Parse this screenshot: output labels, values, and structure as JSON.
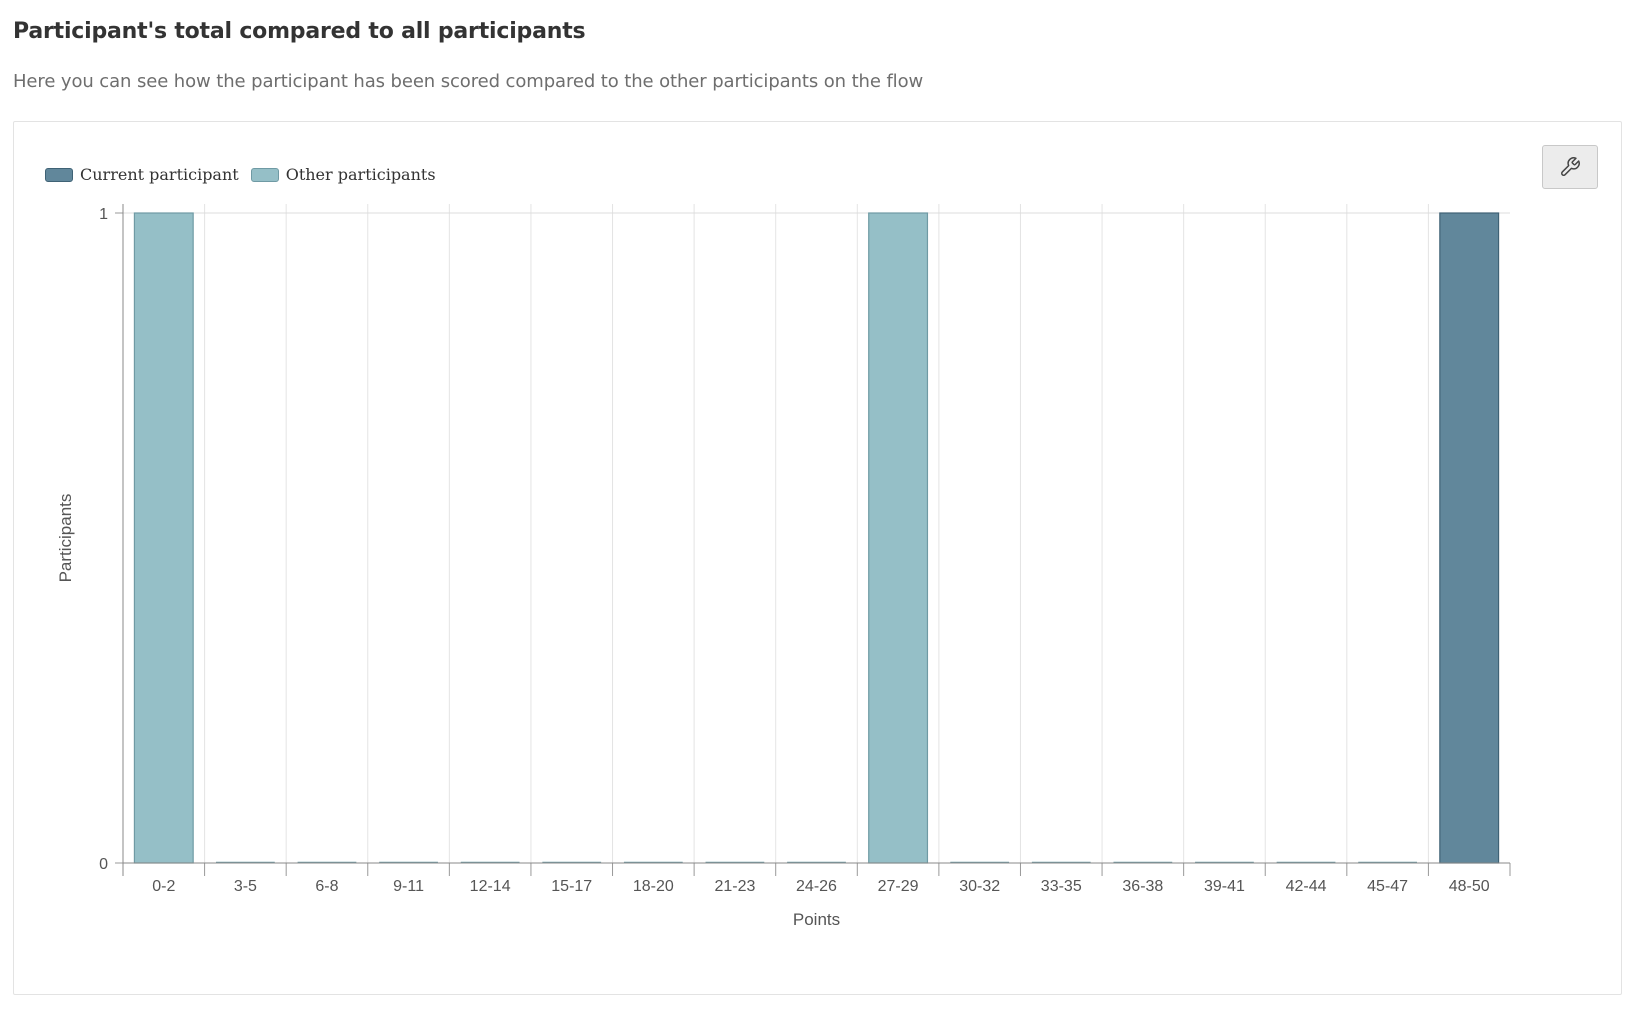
{
  "header": {
    "title": "Participant's total compared to all participants",
    "subtitle": "Here you can see how the participant has been scored compared to the other participants on the flow"
  },
  "toolbar": {
    "options_icon": "wrench-icon"
  },
  "legend": {
    "items": [
      {
        "label": "Current participant",
        "color": "#61879b"
      },
      {
        "label": "Other participants",
        "color": "#95bfc7"
      }
    ]
  },
  "chart_data": {
    "type": "bar",
    "xlabel": "Points",
    "ylabel": "Participants",
    "ylim": [
      0,
      1
    ],
    "yticks": [
      "0",
      "1"
    ],
    "grid": true,
    "legend_position": "top-left",
    "categories": [
      "0-2",
      "3-5",
      "6-8",
      "9-11",
      "12-14",
      "15-17",
      "18-20",
      "21-23",
      "24-26",
      "27-29",
      "30-32",
      "33-35",
      "36-38",
      "39-41",
      "42-44",
      "45-47",
      "48-50"
    ],
    "series": [
      {
        "name": "Current participant",
        "color": "#61879b",
        "values": [
          0,
          0,
          0,
          0,
          0,
          0,
          0,
          0,
          0,
          0,
          0,
          0,
          0,
          0,
          0,
          0,
          1
        ]
      },
      {
        "name": "Other participants",
        "color": "#95bfc7",
        "values": [
          1,
          0,
          0,
          0,
          0,
          0,
          0,
          0,
          0,
          1,
          0,
          0,
          0,
          0,
          0,
          0,
          0
        ]
      }
    ]
  }
}
